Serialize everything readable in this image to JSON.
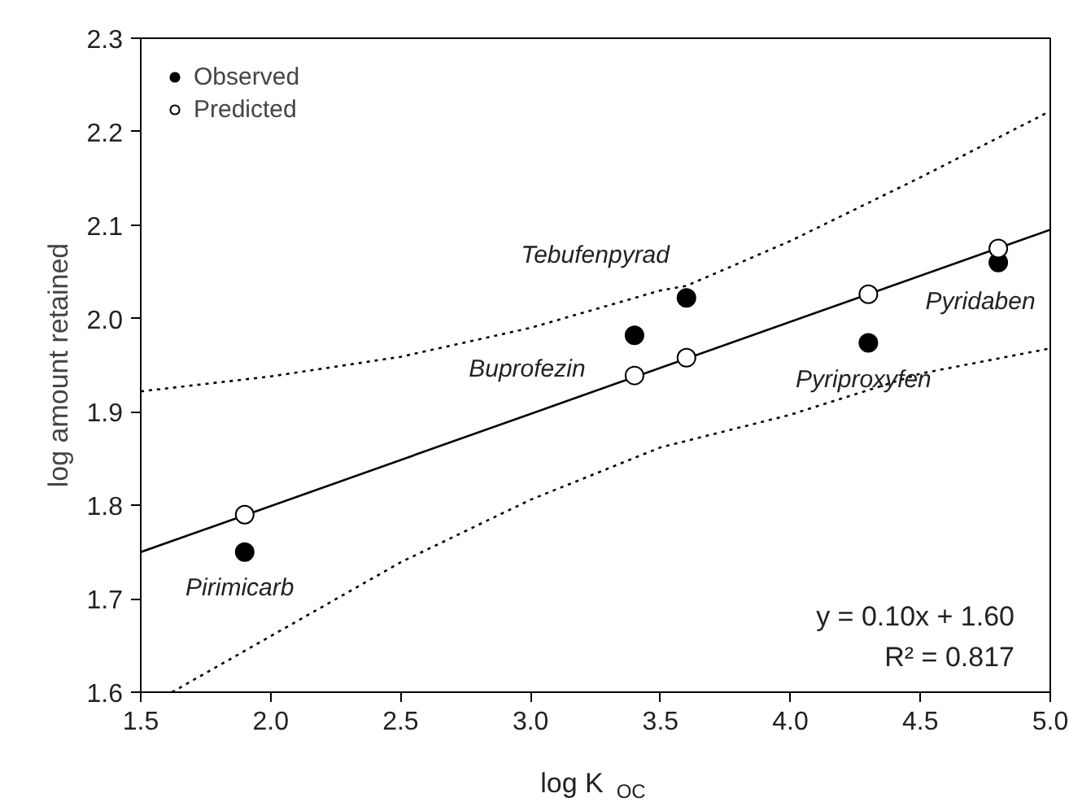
{
  "chart_data": {
    "type": "scatter",
    "xlabel": "log K$_{OC}$",
    "ylabel": "log amount retained",
    "xlim": [
      1.5,
      5.0
    ],
    "ylim": [
      1.6,
      2.3
    ],
    "xticks": [
      {
        "value": 1.5,
        "label": "1.5"
      },
      {
        "value": 2.0,
        "label": "2.0"
      },
      {
        "value": 2.5,
        "label": "2.5"
      },
      {
        "value": 3.0,
        "label": "3.0"
      },
      {
        "value": 3.5,
        "label": "3.5"
      },
      {
        "value": 4.0,
        "label": "4.0"
      },
      {
        "value": 4.5,
        "label": "4.5"
      },
      {
        "value": 5.0,
        "label": "5.0"
      }
    ],
    "yticks": [
      {
        "value": 1.6,
        "label": "1.6"
      },
      {
        "value": 1.7,
        "label": "1.7"
      },
      {
        "value": 1.8,
        "label": "1.8"
      },
      {
        "value": 1.9,
        "label": "1.9"
      },
      {
        "value": 2.0,
        "label": "2.0"
      },
      {
        "value": 2.1,
        "label": "2.1"
      },
      {
        "value": 2.2,
        "label": "2.2"
      },
      {
        "value": 2.3,
        "label": "2.3"
      }
    ],
    "grid": false,
    "legend": "top left",
    "marker": "circle",
    "series": [
      {
        "type": "line",
        "color": "#000000",
        "line_style": "solid",
        "marker": "none",
        "x": [
          1.5,
          5.0
        ],
        "values": [
          1.75,
          2.095
        ]
      },
      {
        "type": "line",
        "color": "#000000",
        "line_style": "dotted",
        "marker": "none",
        "x": [
          1.5,
          2.0,
          2.5,
          3.0,
          3.5,
          3.6,
          4.0,
          4.5,
          5.0
        ],
        "values": [
          1.922,
          1.938,
          1.959,
          1.99,
          2.03,
          2.035,
          2.083,
          2.151,
          2.222
        ]
      },
      {
        "type": "line",
        "color": "#000000",
        "line_style": "dotted",
        "marker": "none",
        "x": [
          1.62,
          2.0,
          2.5,
          3.0,
          3.5,
          4.0,
          4.5,
          5.0
        ],
        "values": [
          1.6,
          1.66,
          1.739,
          1.806,
          1.862,
          1.897,
          1.941,
          1.968
        ]
      },
      {
        "name": "Observed",
        "color": "#000000",
        "x": [
          1.9,
          3.4,
          3.6,
          4.3,
          4.8
        ],
        "values": [
          1.75,
          1.982,
          2.022,
          1.974,
          2.06
        ]
      },
      {
        "name": "Predicted",
        "color": "#ffffff",
        "x": [
          1.9,
          3.4,
          3.6,
          4.3,
          4.8
        ],
        "values": [
          1.79,
          1.939,
          1.958,
          2.026,
          2.075
        ]
      }
    ],
    "annotations": [
      {
        "text": "Pirimicarb",
        "x": 1.9,
        "y": 1.75
      },
      {
        "text": "Buprofezin",
        "x": 3.4,
        "y": 1.982
      },
      {
        "text": "Tebufenpyrad",
        "x": 3.6,
        "y": 2.022
      },
      {
        "text": "Pyriproxyfen",
        "x": 4.3,
        "y": 1.974
      },
      {
        "text": "Pyridaben",
        "x": 4.8,
        "y": 2.06
      },
      "y = 0.10x + 1.60",
      "R² = 0.817"
    ]
  }
}
